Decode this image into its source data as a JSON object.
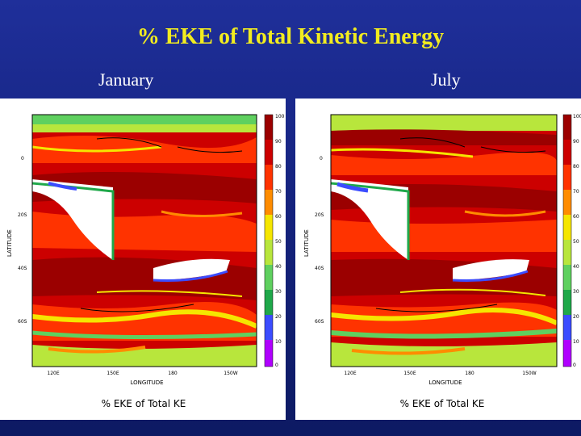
{
  "title": "% EKE of Total Kinetic Energy",
  "panels": [
    {
      "label": "January",
      "y_axis_label": "LATITUDE",
      "x_axis_label": "LONGITUDE",
      "footer": "% EKE of Total KE",
      "y_ticks": [
        "0",
        "20S",
        "40S",
        "60S"
      ],
      "x_ticks": [
        "120E",
        "150E",
        "180",
        "150W"
      ],
      "colorbar_ticks": [
        "100",
        "90",
        "80",
        "70",
        "60",
        "50",
        "40",
        "30",
        "20",
        "10",
        "0"
      ]
    },
    {
      "label": "July",
      "y_axis_label": "LATITUDE",
      "x_axis_label": "LONGITUDE",
      "footer": "% EKE of Total KE",
      "y_ticks": [
        "0",
        "20S",
        "40S",
        "60S"
      ],
      "x_ticks": [
        "120E",
        "150E",
        "180",
        "150W"
      ],
      "colorbar_ticks": [
        "100",
        "90",
        "80",
        "70",
        "60",
        "50",
        "40",
        "30",
        "20",
        "10",
        "0"
      ]
    }
  ],
  "colors": {
    "title": "#f2ec1f",
    "background": "#15237f",
    "colorbar": [
      "#9b0000",
      "#cc0000",
      "#ff3300",
      "#ff8c00",
      "#f5e600",
      "#b8e63c",
      "#5fd05f",
      "#1fa84a",
      "#3b4cff",
      "#b000ff"
    ]
  }
}
